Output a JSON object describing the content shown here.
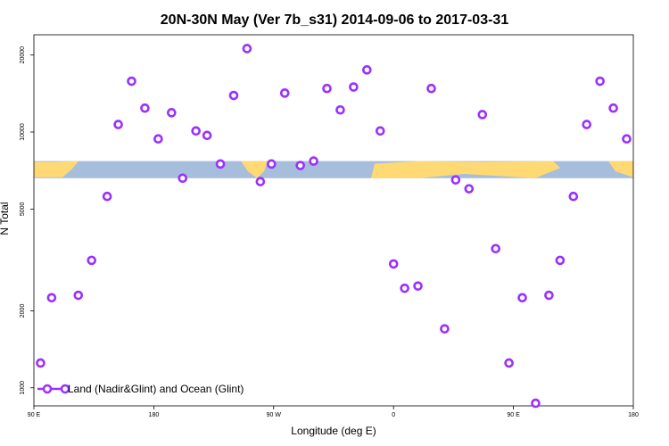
{
  "chart_data": {
    "type": "scatter",
    "title": "20N-30N May (Ver 7b_s31)   2014-09-06 to 2017-03-31",
    "xlabel": "Longitude (deg E)",
    "ylabel": "N Total",
    "x_axis": {
      "range": [
        -90,
        180
      ],
      "ticks": [
        {
          "value": -90,
          "label": "90 E"
        },
        {
          "value": -36,
          "label": "180"
        },
        {
          "value": 18,
          "label": "90 W"
        },
        {
          "value": 72,
          "label": "0"
        },
        {
          "value": 126,
          "label": "90 E"
        },
        {
          "value": 180,
          "label": "180"
        }
      ]
    },
    "y_axis": {
      "scale": "log",
      "range": [
        850,
        24000
      ],
      "ticks": [
        1000,
        2000,
        5000,
        10000,
        20000
      ]
    },
    "series": [
      {
        "name": "Land (Nadir&Glint) and Ocean (Glint)",
        "color": "#9b30ff",
        "marker": "circle-open",
        "x": [
          -87,
          -82,
          -70,
          -64,
          -57,
          -52,
          -46,
          -40,
          -34,
          -28,
          -23,
          -17,
          -12,
          -6,
          0,
          6,
          12,
          17,
          23,
          30,
          36,
          42,
          48,
          54,
          60,
          66,
          72,
          77,
          83,
          89,
          95,
          100,
          106,
          112,
          118,
          124,
          130,
          136,
          142,
          147,
          153,
          159,
          165,
          171,
          177
        ],
        "y": [
          1250,
          2250,
          2300,
          3150,
          5600,
          10700,
          15800,
          12400,
          9400,
          11900,
          6600,
          10100,
          9700,
          7500,
          13900,
          21200,
          6400,
          7500,
          14200,
          7400,
          7700,
          14800,
          12200,
          15000,
          17500,
          10100,
          3050,
          2450,
          2500,
          14800,
          1700,
          6500,
          6000,
          11700,
          3500,
          1250,
          2250,
          870,
          2300,
          3150,
          5600,
          10700,
          15800,
          12400,
          9400
        ]
      }
    ],
    "legend": {
      "position": "bottom-left",
      "entries": [
        "Land (Nadir&Glint) and Ocean (Glint)"
      ]
    },
    "background_map_band": {
      "y_range": [
        6600,
        7700
      ],
      "ocean_color": "#a7bddc",
      "land_color": "#ffd973"
    }
  }
}
